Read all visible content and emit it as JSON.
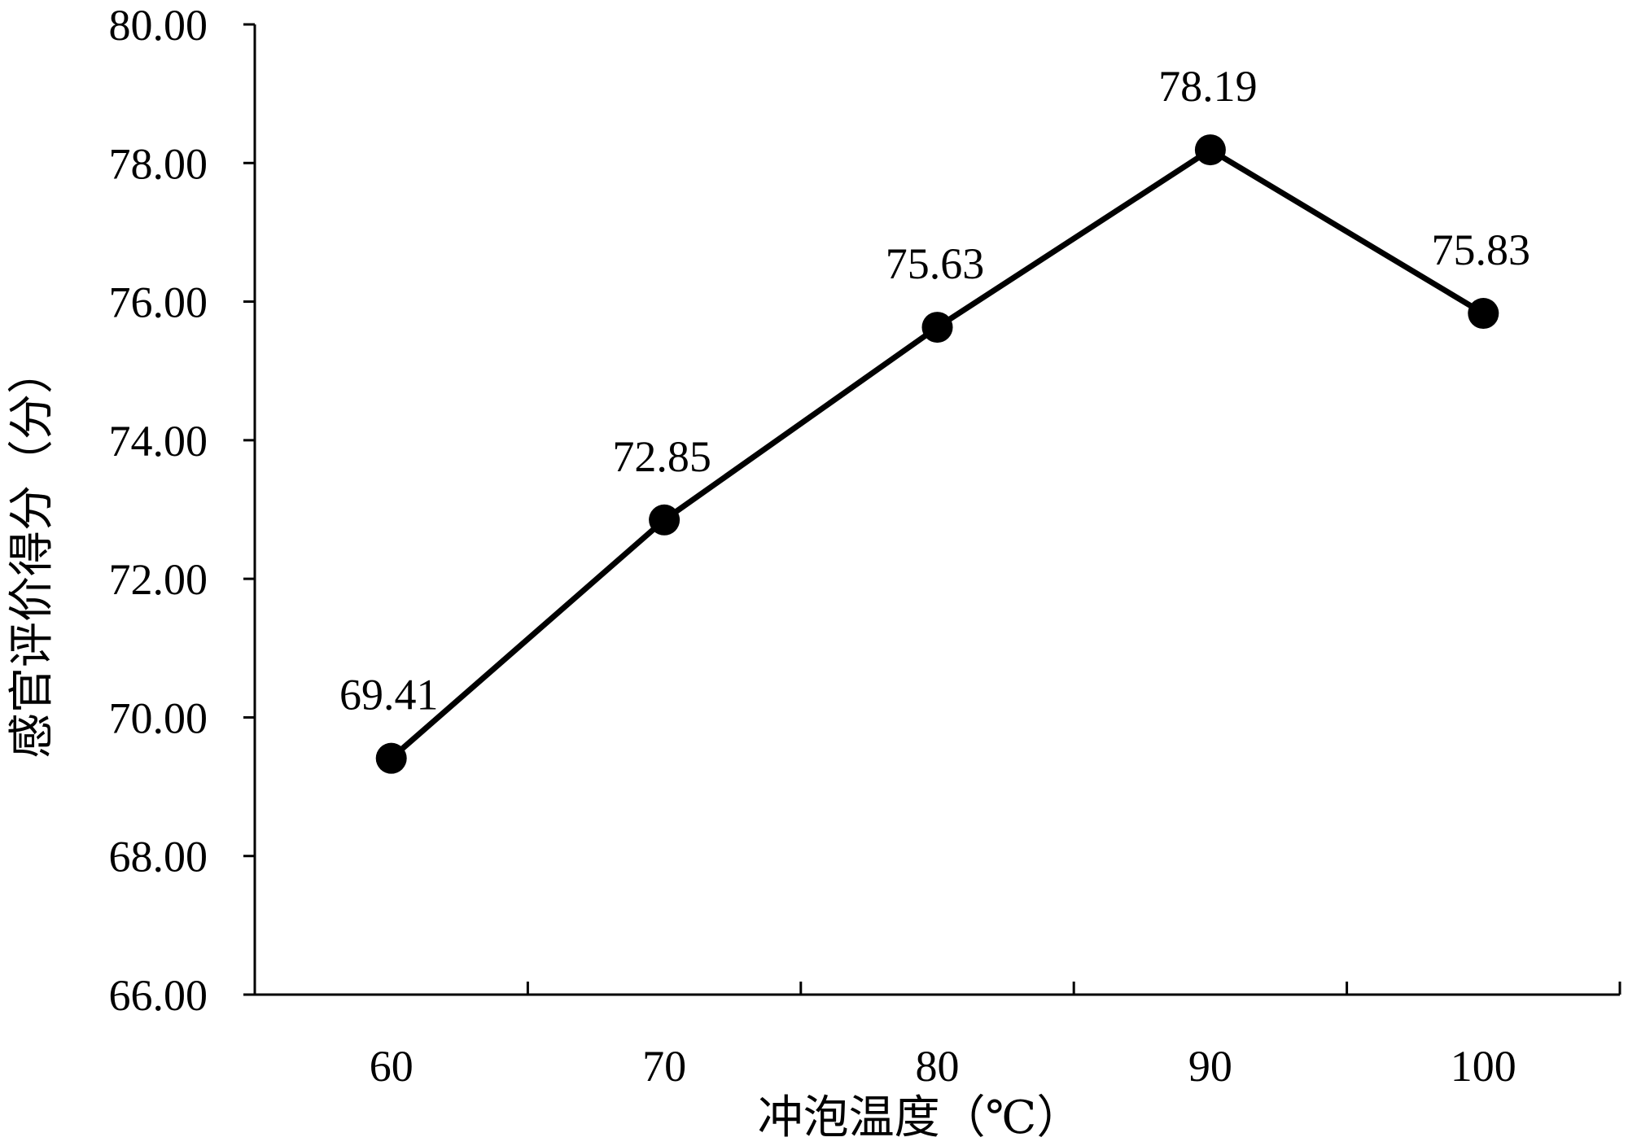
{
  "chart_data": {
    "type": "line",
    "categories": [
      "60",
      "70",
      "80",
      "90",
      "100"
    ],
    "series": [
      {
        "values": [
          69.41,
          72.85,
          75.63,
          78.19,
          75.83
        ],
        "color": "#000000"
      }
    ],
    "data_labels": [
      "69.41",
      "72.85",
      "75.63",
      "78.19",
      "75.83"
    ],
    "xlabel": "冲泡温度（℃）",
    "ylabel": "感官评价得分（分）",
    "ylim": [
      66,
      80
    ],
    "yticks": [
      "66.00",
      "68.00",
      "70.00",
      "72.00",
      "74.00",
      "76.00",
      "78.00",
      "80.00"
    ],
    "grid": false,
    "legend": "none"
  }
}
